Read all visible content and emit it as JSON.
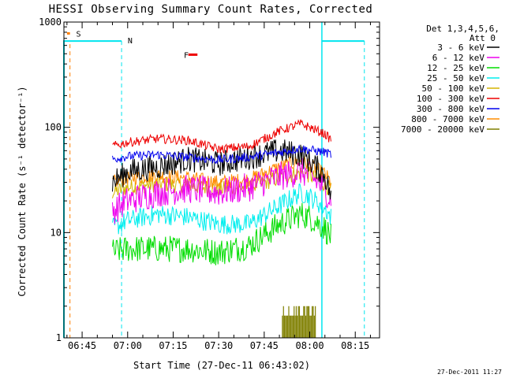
{
  "chart_data": {
    "type": "line",
    "title": "HESSI Observing Summary Count Rates, Corrected",
    "xlabel": "Start Time (27-Dec-11 06:43:02)",
    "ylabel": "Corrected Count Rate (s⁻¹ detector⁻¹)",
    "yscale": "log",
    "ylim": [
      1,
      1000
    ],
    "xlim": [
      "06:39",
      "08:23"
    ],
    "x_ticks": [
      "06:45",
      "07:00",
      "07:15",
      "07:30",
      "07:45",
      "08:00",
      "08:15"
    ],
    "y_ticks": [
      "1",
      "10",
      "100",
      "1000"
    ],
    "legend_title_line1": "Det 1,3,4,5,6,",
    "legend_title_line2": "Att 0",
    "legend_position": "top-right",
    "footer": "27-Dec-2011 11:27",
    "flags": [
      {
        "label": "S",
        "color": "#ff7f00"
      },
      {
        "label": "N",
        "color": "#00e5ee"
      },
      {
        "label": "F",
        "color": "#ee0000"
      }
    ],
    "series": [
      {
        "name": "3 - 6 keV",
        "color": "#000000",
        "x": [
          "06:55",
          "07:00",
          "07:10",
          "07:20",
          "07:30",
          "07:40",
          "07:50",
          "07:57",
          "08:00",
          "08:05",
          "08:07"
        ],
        "y": [
          30,
          38,
          42,
          50,
          45,
          52,
          60,
          55,
          48,
          35,
          22
        ]
      },
      {
        "name": "6 - 12 keV",
        "color": "#ee00ee",
        "x": [
          "06:55",
          "07:00",
          "07:10",
          "07:20",
          "07:30",
          "07:40",
          "07:50",
          "07:57",
          "08:00",
          "08:05",
          "08:07"
        ],
        "y": [
          16,
          20,
          24,
          26,
          24,
          27,
          34,
          38,
          35,
          26,
          20
        ]
      },
      {
        "name": "12 - 25 keV",
        "color": "#00dd00",
        "x": [
          "06:55",
          "07:00",
          "07:10",
          "07:20",
          "07:30",
          "07:40",
          "07:50",
          "07:57",
          "08:00",
          "08:05",
          "08:07"
        ],
        "y": [
          6.5,
          7,
          7,
          7,
          6.5,
          7.5,
          12,
          15,
          14,
          11,
          9
        ]
      },
      {
        "name": "25 - 50 keV",
        "color": "#00eeee",
        "x": [
          "06:55",
          "07:00",
          "07:10",
          "07:20",
          "07:30",
          "07:40",
          "07:50",
          "07:57",
          "08:00",
          "08:05",
          "08:07"
        ],
        "y": [
          11,
          13,
          15,
          14,
          12,
          12,
          18,
          24,
          22,
          17,
          14
        ]
      },
      {
        "name": "50 - 100 keV",
        "color": "#d4b400",
        "x": [
          "06:55",
          "07:00",
          "07:10",
          "07:20",
          "07:30",
          "07:40",
          "07:50",
          "07:57",
          "08:00",
          "08:05",
          "08:07"
        ],
        "y": [
          24,
          27,
          29,
          28,
          26,
          27,
          33,
          37,
          35,
          29,
          25
        ]
      },
      {
        "name": "100 - 300 keV",
        "color": "#ee0000",
        "x": [
          "06:55",
          "07:00",
          "07:10",
          "07:20",
          "07:30",
          "07:40",
          "07:50",
          "07:57",
          "08:00",
          "08:05",
          "08:07"
        ],
        "y": [
          66,
          72,
          78,
          75,
          62,
          66,
          92,
          108,
          100,
          86,
          76
        ]
      },
      {
        "name": "300 - 800 keV",
        "color": "#0000ee",
        "x": [
          "06:55",
          "07:00",
          "07:10",
          "07:20",
          "07:30",
          "07:40",
          "07:50",
          "07:57",
          "08:00",
          "08:05",
          "08:07"
        ],
        "y": [
          50,
          53,
          55,
          52,
          49,
          52,
          58,
          63,
          61,
          58,
          55
        ]
      },
      {
        "name": "800 - 7000 keV",
        "color": "#ff8c00",
        "x": [
          "06:55",
          "07:00",
          "07:10",
          "07:20",
          "07:30",
          "07:40",
          "07:50",
          "07:57",
          "08:00",
          "08:05",
          "08:07"
        ],
        "y": [
          30,
          33,
          35,
          33,
          30,
          32,
          42,
          48,
          44,
          36,
          30
        ]
      },
      {
        "name": "7000 - 20000 keV",
        "color": "#7f7f00",
        "x": [
          "07:51",
          "07:54",
          "07:57",
          "08:00",
          "08:02"
        ],
        "y": [
          2,
          2,
          2,
          2,
          2
        ]
      }
    ]
  }
}
